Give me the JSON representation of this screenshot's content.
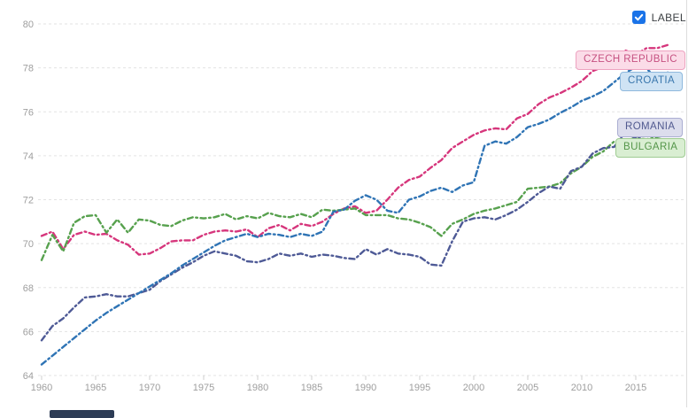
{
  "header": {
    "label_toggle": {
      "text": "LABEL",
      "checked": true
    }
  },
  "colors": {
    "checkbox_accent": "#1a73e8",
    "checkbox_check": "#ffffff",
    "axis_text": "#9e9e9e",
    "gridline": "#e3e3e3",
    "tick": "#cfcfcf",
    "right_border": "#dcdcdc",
    "scrollbar_thumb": "#2d3c56",
    "background": "#ffffff"
  },
  "scrollbar": {
    "present": true,
    "orientation": "horizontal"
  },
  "chart_data": {
    "type": "line",
    "title": "",
    "xlabel": "",
    "ylabel": "",
    "xlim": [
      1960,
      2018
    ],
    "ylim": [
      64,
      80
    ],
    "xticks": [
      1960,
      1965,
      1970,
      1975,
      1980,
      1985,
      1990,
      1995,
      2000,
      2005,
      2010,
      2015
    ],
    "yticks": [
      64,
      66,
      68,
      70,
      72,
      74,
      76,
      78,
      80
    ],
    "grid": "horizontal-dashed",
    "line_style": "dash-dot",
    "legend_position": "end-of-line-label-pills",
    "x": [
      1960,
      1961,
      1962,
      1963,
      1964,
      1965,
      1966,
      1967,
      1968,
      1969,
      1970,
      1971,
      1972,
      1973,
      1974,
      1975,
      1976,
      1977,
      1978,
      1979,
      1980,
      1981,
      1982,
      1983,
      1984,
      1985,
      1986,
      1987,
      1988,
      1989,
      1990,
      1991,
      1992,
      1993,
      1994,
      1995,
      1996,
      1997,
      1998,
      1999,
      2000,
      2001,
      2002,
      2003,
      2004,
      2005,
      2006,
      2007,
      2008,
      2009,
      2010,
      2011,
      2012,
      2013,
      2014,
      2015,
      2016,
      2017,
      2018
    ],
    "series": [
      {
        "name": "czech-republic",
        "label": "CZECH REPUBLIC",
        "color": "#d6367c",
        "pill_bg": "#fbdce8",
        "pill_border": "#eda3c0",
        "pill_text": "#c65181",
        "values": [
          70.35,
          70.55,
          69.75,
          70.4,
          70.55,
          70.4,
          70.45,
          70.15,
          69.95,
          69.5,
          69.55,
          69.8,
          70.1,
          70.15,
          70.15,
          70.4,
          70.55,
          70.6,
          70.55,
          70.65,
          70.3,
          70.7,
          70.85,
          70.6,
          70.9,
          70.8,
          71.0,
          71.35,
          71.6,
          71.7,
          71.4,
          71.5,
          72.0,
          72.55,
          72.9,
          73.05,
          73.45,
          73.8,
          74.35,
          74.65,
          74.95,
          75.15,
          75.25,
          75.2,
          75.7,
          75.9,
          76.35,
          76.65,
          76.85,
          77.1,
          77.4,
          77.85,
          78.05,
          78.25,
          78.8,
          78.6,
          78.9,
          78.9,
          79.05
        ]
      },
      {
        "name": "bulgaria",
        "label": "BULGARIA",
        "color": "#57a14e",
        "pill_bg": "#d9eed2",
        "pill_border": "#9ecb92",
        "pill_text": "#55964a",
        "values": [
          69.25,
          70.4,
          69.65,
          70.95,
          71.25,
          71.3,
          70.5,
          71.1,
          70.5,
          71.1,
          71.05,
          70.85,
          70.8,
          71.05,
          71.2,
          71.15,
          71.2,
          71.35,
          71.1,
          71.25,
          71.15,
          71.4,
          71.25,
          71.2,
          71.35,
          71.2,
          71.55,
          71.5,
          71.55,
          71.6,
          71.3,
          71.3,
          71.3,
          71.15,
          71.1,
          70.95,
          70.75,
          70.35,
          70.9,
          71.1,
          71.35,
          71.5,
          71.6,
          71.75,
          71.9,
          72.5,
          72.55,
          72.6,
          72.75,
          73.2,
          73.5,
          73.95,
          74.2,
          74.65,
          74.7,
          74.8,
          74.75,
          74.85,
          74.95
        ]
      },
      {
        "name": "romania",
        "label": "ROMANIA",
        "color": "#4e5a96",
        "pill_bg": "#dcdded",
        "pill_border": "#abaed2",
        "pill_text": "#50598f",
        "values": [
          65.6,
          66.25,
          66.6,
          67.1,
          67.55,
          67.6,
          67.7,
          67.6,
          67.6,
          67.75,
          67.9,
          68.3,
          68.6,
          68.9,
          69.15,
          69.45,
          69.65,
          69.55,
          69.45,
          69.2,
          69.15,
          69.3,
          69.55,
          69.45,
          69.55,
          69.4,
          69.5,
          69.45,
          69.35,
          69.3,
          69.75,
          69.5,
          69.75,
          69.55,
          69.5,
          69.4,
          69.05,
          69.0,
          70.1,
          71.0,
          71.15,
          71.2,
          71.1,
          71.3,
          71.55,
          71.9,
          72.3,
          72.6,
          72.5,
          73.3,
          73.5,
          74.1,
          74.35,
          74.4,
          75.05,
          74.8,
          74.95,
          75.1,
          75.25
        ]
      },
      {
        "name": "croatia",
        "label": "CROATIA",
        "color": "#2f74b5",
        "pill_bg": "#cfe3f4",
        "pill_border": "#8fb9dd",
        "pill_text": "#3a77ad",
        "values": [
          64.5,
          64.9,
          65.3,
          65.7,
          66.1,
          66.5,
          66.85,
          67.15,
          67.45,
          67.75,
          68.05,
          68.35,
          68.65,
          69.0,
          69.3,
          69.6,
          69.9,
          70.15,
          70.3,
          70.45,
          70.3,
          70.45,
          70.4,
          70.3,
          70.45,
          70.35,
          70.55,
          71.45,
          71.55,
          71.95,
          72.2,
          72.0,
          71.5,
          71.4,
          72.0,
          72.15,
          72.4,
          72.55,
          72.35,
          72.65,
          72.8,
          74.45,
          74.65,
          74.55,
          74.85,
          75.3,
          75.45,
          75.65,
          75.95,
          76.2,
          76.5,
          76.7,
          76.95,
          77.35,
          77.75,
          78.05,
          77.95,
          77.55,
          77.8
        ]
      }
    ]
  }
}
